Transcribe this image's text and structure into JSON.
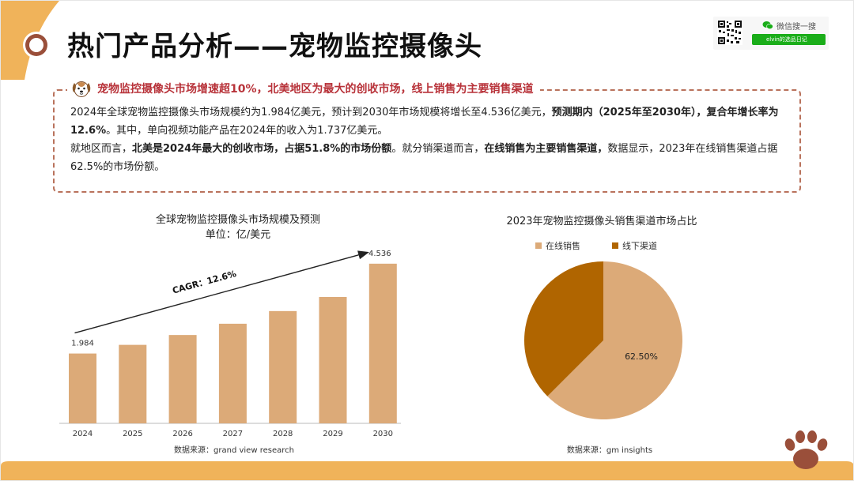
{
  "page": {
    "title": "热门产品分析——宠物监控摄像头"
  },
  "colors": {
    "accent_orange": "#F0B35A",
    "bar_color": "#DCAA78",
    "pie_online": "#DCAA78",
    "pie_offline": "#B06500",
    "headline_red": "#B8333A",
    "dashed_border": "#B9725C"
  },
  "wechat": {
    "search_label": "微信搜一搜",
    "account_id": "elvin的选品日记",
    "qr_icon": "qr-code-icon"
  },
  "summary": {
    "headline": "宠物监控摄像头市场增速超10%，北美地区为最大的创收市场，线上销售为主要销售渠道",
    "p1_a": "2024年全球宠物监控摄像头市场规模约为1.984亿美元，预计到2030年市场规模将增长至4.536亿美元，",
    "p1_b": "预测期内（2025年至2030年），复合年增长率为12.6%",
    "p1_c": "。其中，单向视频功能产品在2024年的收入为1.737亿美元。",
    "p2_a": "就地区而言，",
    "p2_b": "北美是2024年最大的创收市场，占据51.8%的市场份额",
    "p2_c": "。就分销渠道而言，",
    "p2_d": "在线销售为主要销售渠道，",
    "p2_e": "数据显示，2023年在线销售渠道占据62.5%的市场份额。"
  },
  "chart_data": [
    {
      "type": "bar",
      "title": "全球宠物监控摄像头市场规模及预测",
      "subtitle": "单位：亿/美元",
      "categories": [
        "2024",
        "2025",
        "2026",
        "2027",
        "2028",
        "2029",
        "2030"
      ],
      "values": [
        1.984,
        2.23,
        2.51,
        2.83,
        3.19,
        3.59,
        4.536
      ],
      "data_labels": {
        "first": "1.984",
        "last": "4.536"
      },
      "annotation": "CAGR：12.6%",
      "ylim": [
        0,
        4.6
      ],
      "grid": false,
      "source": "数据来源：grand view research"
    },
    {
      "type": "pie",
      "title": "2023年宠物监控摄像头销售渠道市场占比",
      "labels": [
        "在线销售",
        "线下渠道"
      ],
      "values": [
        62.5,
        37.5
      ],
      "slice_label": "62.50%",
      "legend_position": "top",
      "source": "数据来源：gm insights"
    }
  ]
}
